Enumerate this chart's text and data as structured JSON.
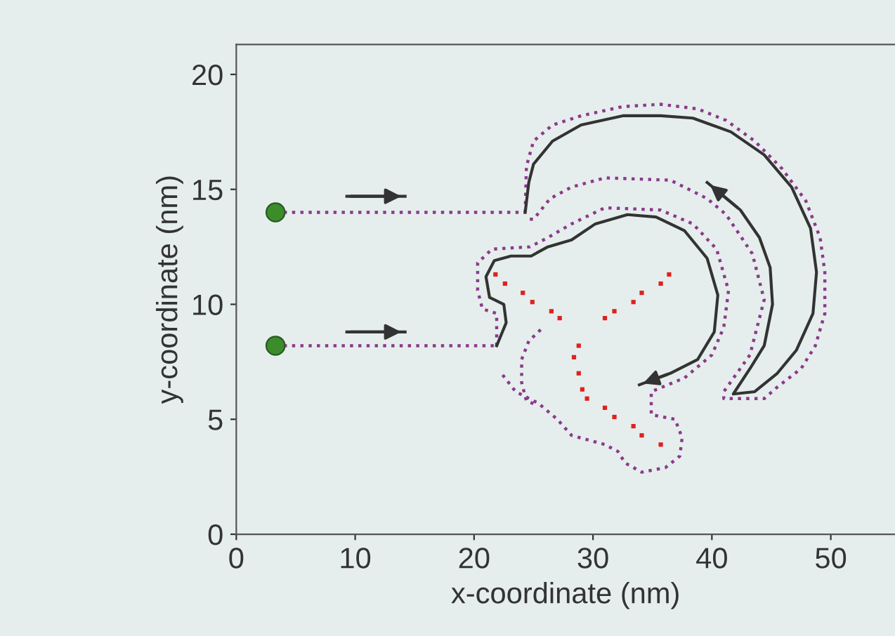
{
  "chart_data": {
    "type": "line",
    "xlabel": "x-coordinate (nm)",
    "ylabel": "y-coordinate (nm)",
    "xlim": [
      0,
      55.4
    ],
    "ylim": [
      0,
      21.3
    ],
    "xticks": [
      0,
      10,
      20,
      30,
      40,
      50
    ],
    "yticks": [
      0,
      5,
      10,
      15,
      20
    ],
    "grid": false,
    "legend": false,
    "series": [
      {
        "line_style": "dotted",
        "color": "#8b3a8b",
        "x": [
          3.3,
          24.3
        ],
        "values": [
          14.0,
          14.0
        ]
      },
      {
        "line_style": "dotted",
        "color": "#8b3a8b",
        "x": [
          3.3,
          21.9
        ],
        "values": [
          8.2,
          8.2
        ]
      },
      {
        "line_style": "dotted",
        "color": "#8b3a8b",
        "x": [
          24.3,
          24.4,
          25.0,
          26.6,
          29.0,
          32.5,
          35.7,
          38.8,
          41.2,
          43.6,
          45.9,
          47.9,
          49.1,
          49.5,
          49.5,
          48.7,
          47.5,
          45.5,
          44.4,
          41.0,
          41.0,
          43.2,
          44.4,
          43.4,
          41.2,
          39.6,
          36.5,
          31.0,
          28.2,
          26.4,
          25.0,
          24.3
        ],
        "values": [
          14.0,
          16.0,
          17.1,
          17.8,
          18.2,
          18.6,
          18.7,
          18.5,
          18.0,
          17.1,
          15.9,
          14.5,
          12.9,
          11.4,
          9.6,
          8.2,
          7.2,
          6.4,
          5.9,
          5.9,
          6.2,
          7.8,
          10.2,
          12.2,
          13.9,
          14.6,
          15.4,
          15.5,
          15.1,
          14.6,
          13.7,
          13.7
        ]
      },
      {
        "line_style": "dotted",
        "color": "#8b3a8b",
        "x": [
          21.9,
          21.9,
          20.7,
          20.3,
          20.3,
          21.5,
          24.7,
          26.2,
          28.2,
          31.0,
          35.7,
          38.4,
          40.4,
          41.4,
          41.0,
          40.0,
          37.7,
          34.9,
          34.9,
          36.9,
          37.5,
          37.3,
          36.1,
          34.1,
          32.7,
          32.1,
          31.0,
          28.2,
          27.0,
          25.4,
          23.5,
          22.3
        ],
        "values": [
          8.2,
          9.6,
          9.8,
          10.6,
          11.8,
          12.4,
          12.5,
          12.9,
          13.5,
          14.2,
          14.1,
          13.5,
          12.4,
          10.6,
          9.0,
          7.8,
          6.8,
          6.2,
          5.2,
          5.0,
          4.2,
          3.4,
          2.9,
          2.7,
          3.1,
          3.6,
          3.9,
          4.3,
          5.0,
          5.7,
          6.2,
          7.0
        ]
      },
      {
        "line_style": "dotted",
        "color": "#8b3a8b",
        "x": [
          25.6,
          24.6,
          24.0,
          24.0,
          24.4,
          25.4
        ],
        "values": [
          8.9,
          8.4,
          7.6,
          6.6,
          5.8,
          5.6
        ]
      },
      {
        "line_style": "solid",
        "color": "#333333",
        "x": [
          24.3,
          24.6,
          25.0,
          26.6,
          29.0,
          32.5,
          35.7,
          38.4,
          41.6,
          44.4,
          46.7,
          48.3,
          48.8,
          48.5,
          47.1,
          45.5,
          43.6,
          41.8,
          43.2,
          44.4,
          45.1,
          44.9,
          44.0,
          42.4,
          39.6
        ],
        "values": [
          14.0,
          15.3,
          16.1,
          17.1,
          17.8,
          18.2,
          18.2,
          18.1,
          17.5,
          16.5,
          15.1,
          13.3,
          11.4,
          9.6,
          8.0,
          7.0,
          6.2,
          6.1,
          7.2,
          8.2,
          10.0,
          11.6,
          12.9,
          14.1,
          15.3
        ]
      },
      {
        "line_style": "solid",
        "color": "#333333",
        "x": [
          21.9,
          22.7,
          22.5,
          21.3,
          21.0,
          21.7,
          23.1,
          24.8,
          26.2,
          28.2,
          30.2,
          32.9,
          35.3,
          37.7,
          39.6,
          40.5,
          40.2,
          38.8,
          36.5,
          33.9
        ],
        "values": [
          8.2,
          9.2,
          10.0,
          10.3,
          11.2,
          11.9,
          12.1,
          12.1,
          12.5,
          12.8,
          13.5,
          13.9,
          13.8,
          13.2,
          12.0,
          10.4,
          8.8,
          7.6,
          7.0,
          6.5
        ]
      },
      {
        "line_style": "solid",
        "color": "#333333",
        "x": [
          9.3,
          14.2
        ],
        "values": [
          14.7,
          14.7
        ]
      },
      {
        "line_style": "solid",
        "color": "#333333",
        "x": [
          9.3,
          14.2
        ],
        "values": [
          8.8,
          8.8
        ]
      },
      {
        "type": "scatter",
        "marker": "square",
        "color": "#e02020",
        "x": [
          21.8,
          22.6,
          24.1,
          24.9,
          26.5,
          27.2,
          31.0,
          31.8,
          33.4,
          34.1,
          35.7,
          36.4,
          28.8,
          28.4,
          28.8,
          29.1,
          29.5,
          31.0,
          31.8,
          33.4,
          34.1,
          35.7
        ],
        "values": [
          11.3,
          10.9,
          10.5,
          10.1,
          9.7,
          9.4,
          9.4,
          9.7,
          10.1,
          10.5,
          10.9,
          11.3,
          8.2,
          7.7,
          7.0,
          6.3,
          5.9,
          5.5,
          5.1,
          4.7,
          4.3,
          3.9
        ]
      },
      {
        "type": "scatter",
        "marker": "circle",
        "color": "#3c8c2c",
        "x": [
          3.3,
          3.3
        ],
        "values": [
          14.0,
          8.2
        ]
      }
    ]
  }
}
